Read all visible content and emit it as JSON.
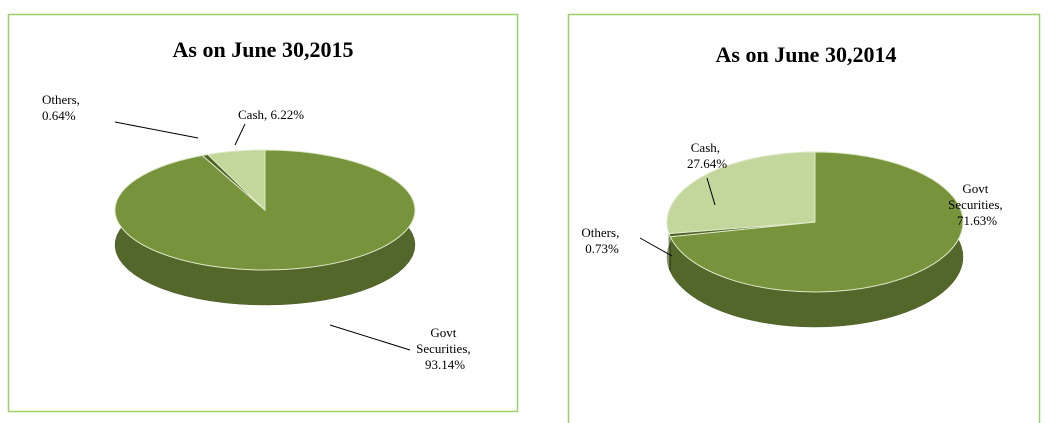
{
  "chart_data": [
    {
      "type": "pie",
      "title": "As on June 30,2015",
      "values": [
        93.14,
        0.64,
        6.22
      ],
      "value_labels": [
        "Govt Securities, 93.14%",
        "Others, 0.64%",
        "Cash, 6.22%"
      ],
      "colors": [
        "#77933c",
        "#4f6228",
        "#c3d69b"
      ]
    },
    {
      "type": "pie",
      "title": "As on June 30,2014",
      "values": [
        71.63,
        0.73,
        27.64
      ],
      "value_labels": [
        "Govt Securities, 71.63%",
        "Others, 0.73%",
        "Cash, 27.64%"
      ],
      "colors": [
        "#77933c",
        "#4f6228",
        "#c3d69b"
      ]
    }
  ]
}
